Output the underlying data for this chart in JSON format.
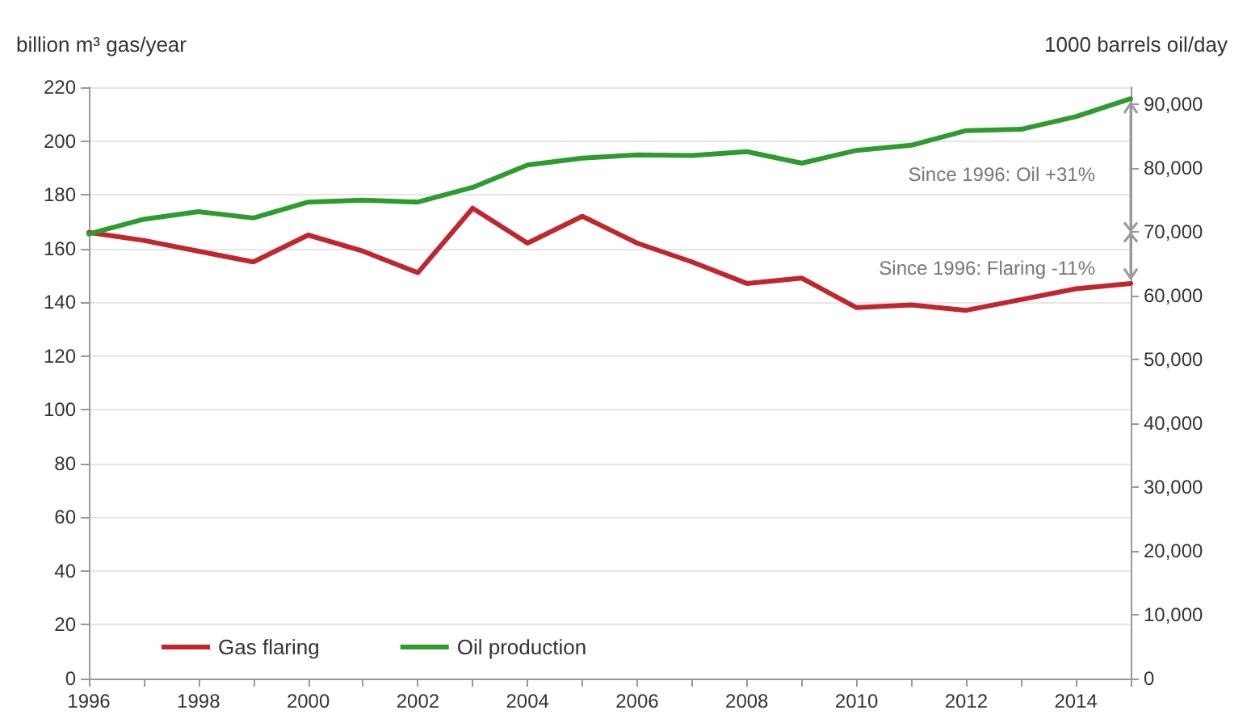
{
  "chart_data": {
    "type": "line",
    "ylabel": "billion m³ gas/year",
    "y2label": "1000 barrels oil/day",
    "categories": [
      "1996",
      null,
      "1998",
      null,
      "2000",
      null,
      "2002",
      null,
      "2004",
      null,
      "2006",
      null,
      "2008",
      null,
      "2010",
      null,
      "2012",
      null,
      "2014",
      null
    ],
    "series": [
      {
        "name": "Gas flaring",
        "color": "#c0262d",
        "values": [
          166,
          163,
          159,
          155,
          165,
          159,
          151,
          175,
          162,
          172,
          162,
          155,
          147,
          149,
          138,
          139,
          137,
          141,
          145,
          147
        ]
      },
      {
        "name": "Oil production",
        "color": "#2e9b2e",
        "axis": "y2",
        "values": [
          69700,
          72000,
          73200,
          72200,
          74700,
          75000,
          74700,
          77000,
          80500,
          81600,
          82100,
          82000,
          82600,
          80800,
          82800,
          83600,
          85900,
          86100,
          88100,
          90900
        ]
      }
    ],
    "ylim": [
      0,
      220
    ],
    "yticks": [
      0,
      20,
      40,
      60,
      80,
      100,
      120,
      140,
      160,
      180,
      200,
      220
    ],
    "y2lim": [
      0,
      92700
    ],
    "y2ticks": [
      {
        "value": 0,
        "label": "0"
      },
      {
        "value": 10000,
        "label": "10,000"
      },
      {
        "value": 20000,
        "label": "20,000"
      },
      {
        "value": 30000,
        "label": "30,000"
      },
      {
        "value": 40000,
        "label": "40,000"
      },
      {
        "value": 50000,
        "label": "50,000"
      },
      {
        "value": 60000,
        "label": "60,000"
      },
      {
        "value": 70000,
        "label": "70,000"
      },
      {
        "value": 80000,
        "label": "80,000"
      },
      {
        "value": 90000,
        "label": "90,000"
      }
    ],
    "annotations": [
      "Since 1996: Oil +31%",
      "Since 1996: Flaring -11%"
    ],
    "grid": "y",
    "legend": "bottom left",
    "marker": "none",
    "line_style": "solid"
  }
}
